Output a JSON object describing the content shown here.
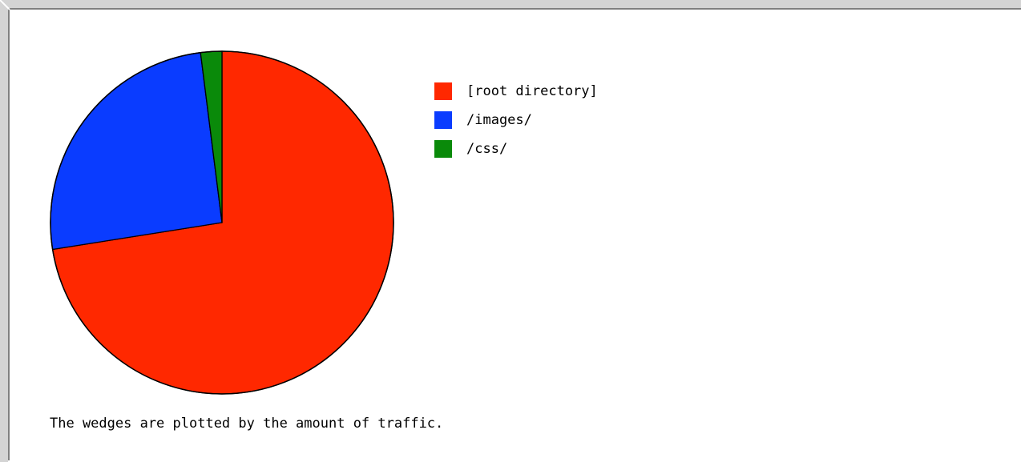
{
  "chart_data": {
    "type": "pie",
    "categories": [
      "[root directory]",
      "/images/",
      "/css/"
    ],
    "values": [
      72.5,
      25.5,
      2.0
    ],
    "colors": [
      "#ff2800",
      "#0a3cff",
      "#0a8a0a"
    ],
    "title": "",
    "legend_position": "right"
  },
  "legend": {
    "items": [
      {
        "label": "[root directory]",
        "color": "#ff2800"
      },
      {
        "label": "/images/",
        "color": "#0a3cff"
      },
      {
        "label": "/css/",
        "color": "#0a8a0a"
      }
    ]
  },
  "caption": "The wedges are plotted by the amount of traffic."
}
